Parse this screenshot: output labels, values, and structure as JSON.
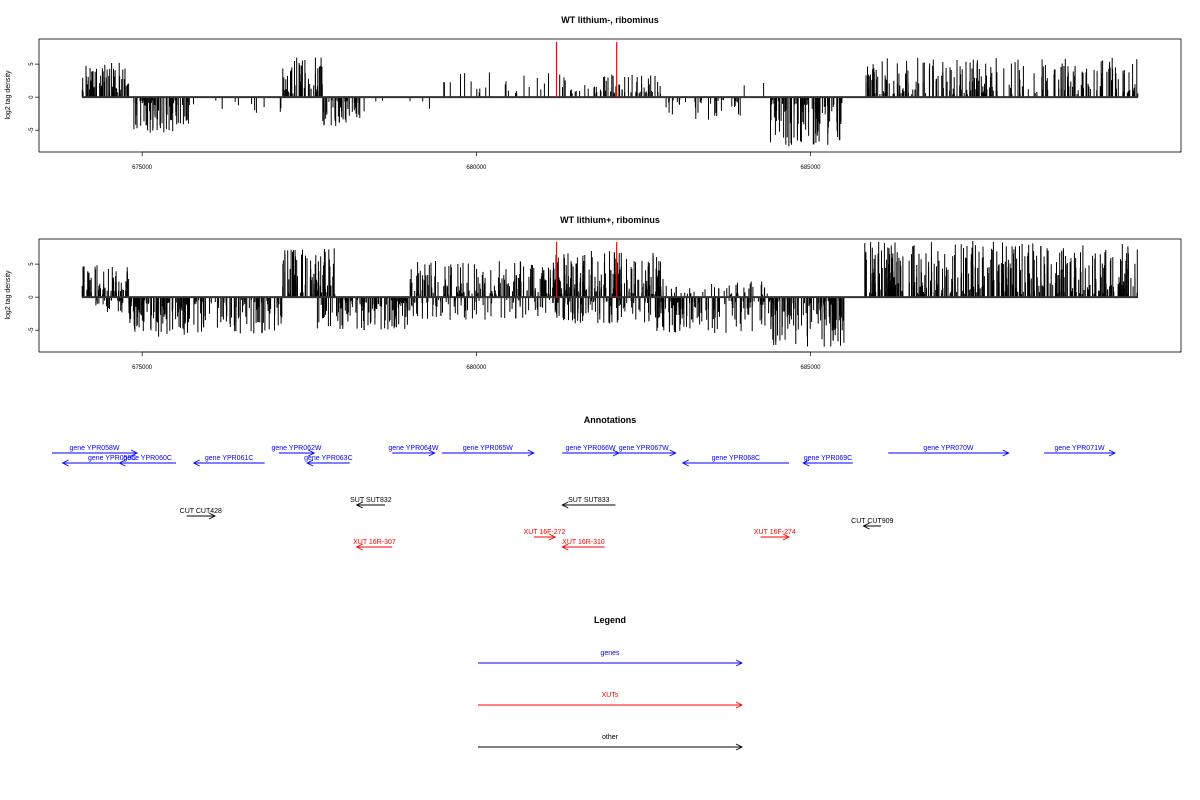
{
  "colors": {
    "gene": "#0000ff",
    "xut": "#ff0000",
    "other": "#000000",
    "marker": "#ff0000",
    "signal": "#000000"
  },
  "chart_data": [
    {
      "type": "bar",
      "title": "WT lithium-, ribominus",
      "ylabel": "log2 tag density",
      "xlim": [
        674000,
        690000
      ],
      "ylim": [
        -8,
        8.5
      ],
      "xticks": [
        675000,
        680000,
        685000
      ],
      "xtick_labels": [
        "675000",
        "680000",
        "685000"
      ],
      "yticks": [
        -5,
        0,
        5
      ],
      "ytick_labels": [
        "-5",
        "0",
        "5"
      ],
      "markers": [
        681200,
        682100
      ],
      "segments": [
        {
          "start": 674100,
          "end": 674800,
          "sign": 1,
          "max": 5.2,
          "density": 0.9
        },
        {
          "start": 674800,
          "end": 675700,
          "sign": -1,
          "max": 5.5,
          "density": 0.8
        },
        {
          "start": 675700,
          "end": 677100,
          "sign": -1,
          "max": 3.0,
          "density": 0.08
        },
        {
          "start": 677100,
          "end": 677700,
          "sign": 1,
          "max": 6.3,
          "density": 0.9
        },
        {
          "start": 677700,
          "end": 678300,
          "sign": -1,
          "max": 4.5,
          "density": 0.7
        },
        {
          "start": 678300,
          "end": 679300,
          "sign": -1,
          "max": 2.5,
          "density": 0.06
        },
        {
          "start": 679300,
          "end": 681100,
          "sign": 1,
          "max": 3.8,
          "density": 0.12
        },
        {
          "start": 681100,
          "end": 682000,
          "sign": 1,
          "max": 3.5,
          "density": 0.25
        },
        {
          "start": 682000,
          "end": 682800,
          "sign": 1,
          "max": 3.8,
          "density": 0.5
        },
        {
          "start": 682800,
          "end": 684000,
          "sign": -1,
          "max": 3.5,
          "density": 0.3
        },
        {
          "start": 684000,
          "end": 684400,
          "sign": 1,
          "max": 3.5,
          "density": 0.05
        },
        {
          "start": 684400,
          "end": 685500,
          "sign": -1,
          "max": 7.5,
          "density": 0.9
        },
        {
          "start": 685800,
          "end": 689900,
          "sign": 1,
          "max": 6.0,
          "density": 0.55
        }
      ]
    },
    {
      "type": "bar",
      "title": "WT lithium+, ribominus",
      "ylabel": "log2 tag density",
      "xlim": [
        674000,
        690000
      ],
      "ylim": [
        -8,
        8.5
      ],
      "xticks": [
        675000,
        680000,
        685000
      ],
      "xtick_labels": [
        "675000",
        "680000",
        "685000"
      ],
      "yticks": [
        -5,
        0,
        5
      ],
      "ytick_labels": [
        "-5",
        "0",
        "5"
      ],
      "markers": [
        681200,
        682100
      ],
      "segments": [
        {
          "start": 674100,
          "end": 674800,
          "sign": 1,
          "max": 5.0,
          "density": 0.95
        },
        {
          "start": 674300,
          "end": 675000,
          "sign": -1,
          "max": 2.5,
          "density": 0.4
        },
        {
          "start": 674800,
          "end": 675800,
          "sign": -1,
          "max": 6.0,
          "density": 0.9
        },
        {
          "start": 675800,
          "end": 677100,
          "sign": -1,
          "max": 5.5,
          "density": 0.6
        },
        {
          "start": 677100,
          "end": 677900,
          "sign": 1,
          "max": 7.5,
          "density": 0.95
        },
        {
          "start": 677600,
          "end": 679000,
          "sign": -1,
          "max": 5.0,
          "density": 0.8
        },
        {
          "start": 679000,
          "end": 681100,
          "sign": 1,
          "max": 5.5,
          "density": 0.7
        },
        {
          "start": 679000,
          "end": 681100,
          "sign": -1,
          "max": 3.5,
          "density": 0.35
        },
        {
          "start": 681100,
          "end": 682800,
          "sign": 1,
          "max": 7.0,
          "density": 0.9
        },
        {
          "start": 681100,
          "end": 682800,
          "sign": -1,
          "max": 4.0,
          "density": 0.5
        },
        {
          "start": 682700,
          "end": 684400,
          "sign": -1,
          "max": 5.5,
          "density": 0.7
        },
        {
          "start": 682700,
          "end": 684400,
          "sign": 1,
          "max": 2.5,
          "density": 0.25
        },
        {
          "start": 684400,
          "end": 685500,
          "sign": -1,
          "max": 7.5,
          "density": 0.95
        },
        {
          "start": 685800,
          "end": 689900,
          "sign": 1,
          "max": 8.5,
          "density": 0.9
        }
      ]
    }
  ],
  "annotations": {
    "title": "Annotations",
    "features": [
      {
        "label": "gene YPR058W",
        "type": "gene",
        "start": 674000,
        "end": 675200,
        "dir": "+",
        "row": 0
      },
      {
        "label": "gene YPR059C",
        "type": "gene",
        "start": 674150,
        "end": 675550,
        "dir": "-",
        "row": 1
      },
      {
        "label": "gene YPR060C",
        "type": "gene",
        "start": 674950,
        "end": 675750,
        "dir": "-",
        "row": 1
      },
      {
        "label": "gene YPR061C",
        "type": "gene",
        "start": 676000,
        "end": 677000,
        "dir": "-",
        "row": 1
      },
      {
        "label": "gene YPR062W",
        "type": "gene",
        "start": 677200,
        "end": 677700,
        "dir": "+",
        "row": 0
      },
      {
        "label": "gene YPR063C",
        "type": "gene",
        "start": 677600,
        "end": 678200,
        "dir": "-",
        "row": 1
      },
      {
        "label": "gene YPR064W",
        "type": "gene",
        "start": 678800,
        "end": 679400,
        "dir": "+",
        "row": 0
      },
      {
        "label": "gene YPR065W",
        "type": "gene",
        "start": 679500,
        "end": 680800,
        "dir": "+",
        "row": 0
      },
      {
        "label": "gene YPR066W",
        "type": "gene",
        "start": 681200,
        "end": 682000,
        "dir": "+",
        "row": 0
      },
      {
        "label": "gene YPR067W",
        "type": "gene",
        "start": 681900,
        "end": 682800,
        "dir": "+",
        "row": 0
      },
      {
        "label": "gene YPR068C",
        "type": "gene",
        "start": 682900,
        "end": 684400,
        "dir": "-",
        "row": 1
      },
      {
        "label": "gene YPR069C",
        "type": "gene",
        "start": 684600,
        "end": 685300,
        "dir": "-",
        "row": 1
      },
      {
        "label": "gene YPR070W",
        "type": "gene",
        "start": 685800,
        "end": 687500,
        "dir": "+",
        "row": 0
      },
      {
        "label": "gene YPR071W",
        "type": "gene",
        "start": 688000,
        "end": 689000,
        "dir": "+",
        "row": 0
      },
      {
        "label": "CUT CUT428",
        "type": "other",
        "start": 675900,
        "end": 676300,
        "dir": "+",
        "row": 4
      },
      {
        "label": "SUT SUT832",
        "type": "other",
        "start": 678300,
        "end": 678700,
        "dir": "-",
        "row": 3
      },
      {
        "label": "SUT SUT833",
        "type": "other",
        "start": 681200,
        "end": 681950,
        "dir": "-",
        "row": 3
      },
      {
        "label": "CUT CUT909",
        "type": "other",
        "start": 685450,
        "end": 685700,
        "dir": "-",
        "row": 5
      },
      {
        "label": "XUT 16F-272",
        "type": "xut",
        "start": 680800,
        "end": 681100,
        "dir": "+",
        "row": 6
      },
      {
        "label": "XUT 16F-274",
        "type": "xut",
        "start": 684000,
        "end": 684400,
        "dir": "+",
        "row": 6
      },
      {
        "label": "XUT 16R-307",
        "type": "xut",
        "start": 678300,
        "end": 678800,
        "dir": "-",
        "row": 7
      },
      {
        "label": "XUT 16R-310",
        "type": "xut",
        "start": 681200,
        "end": 681800,
        "dir": "-",
        "row": 7
      }
    ]
  },
  "legend": {
    "title": "Legend",
    "items": [
      {
        "label": "genes",
        "type": "gene"
      },
      {
        "label": "XUTs",
        "type": "xut"
      },
      {
        "label": "other",
        "type": "other"
      }
    ]
  }
}
